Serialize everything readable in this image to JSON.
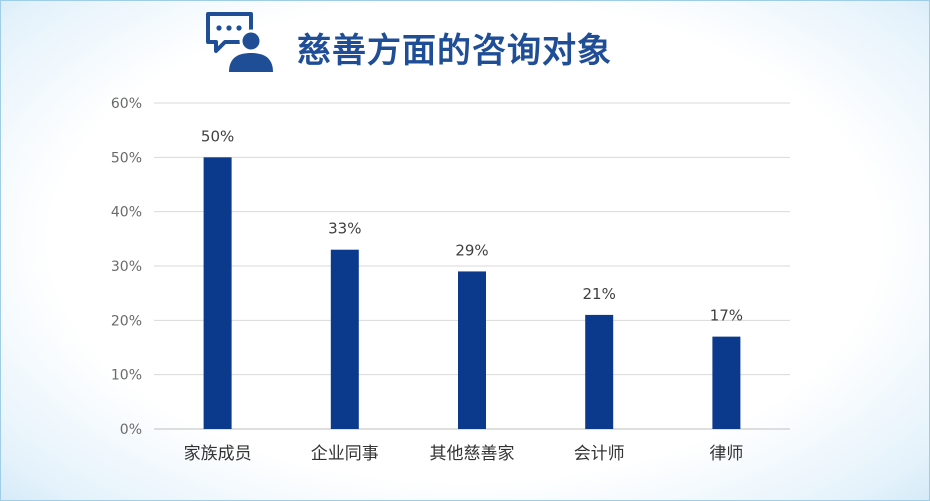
{
  "header": {
    "title": "慈善方面的咨询对象",
    "icon": "chat-user-icon"
  },
  "colors": {
    "bar": "#0b3a8c",
    "title": "#1f4e96",
    "grid": "#d9d9d9"
  },
  "chart_data": {
    "type": "bar",
    "title": "慈善方面的咨询对象",
    "xlabel": "",
    "ylabel": "",
    "categories": [
      "家族成员",
      "企业同事",
      "其他慈善家",
      "会计师",
      "律师"
    ],
    "values": [
      50,
      33,
      29,
      21,
      17
    ],
    "data_labels": [
      "50%",
      "33%",
      "29%",
      "21%",
      "17%"
    ],
    "ylim": [
      0,
      60
    ],
    "yticks": [
      0,
      10,
      20,
      30,
      40,
      50,
      60
    ],
    "ytick_labels": [
      "0%",
      "10%",
      "20%",
      "30%",
      "40%",
      "50%",
      "60%"
    ],
    "grid": true,
    "legend": "none"
  }
}
